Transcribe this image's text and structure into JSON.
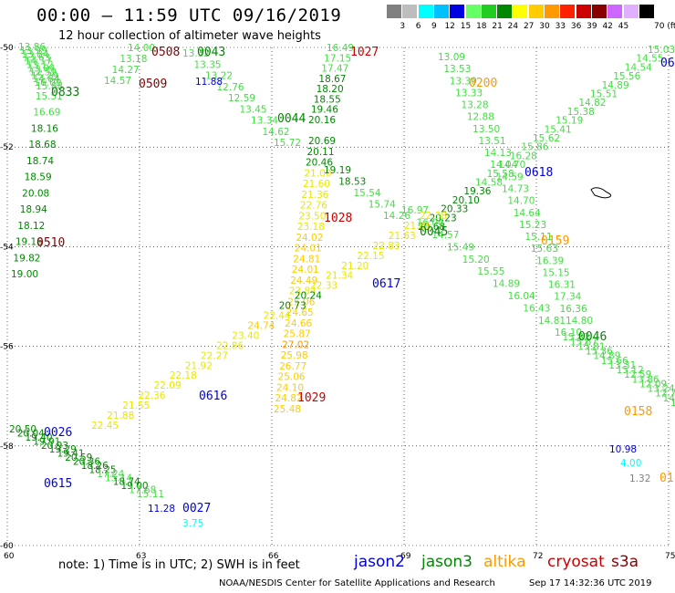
{
  "header": {
    "title": "00:00 – 11:59 UTC 09/16/2019",
    "subtitle": "12 hour collection of altimeter wave heights"
  },
  "legend": {
    "unit": "70 (ft)",
    "bins": [
      {
        "label": "",
        "color": "#808080"
      },
      {
        "label": "3",
        "color": "#bdbdbd"
      },
      {
        "label": "6",
        "color": "#00ffff"
      },
      {
        "label": "9",
        "color": "#00c0ff"
      },
      {
        "label": "12",
        "color": "#0000e0"
      },
      {
        "label": "15",
        "color": "#66ff66"
      },
      {
        "label": "18",
        "color": "#22cc22"
      },
      {
        "label": "21",
        "color": "#008800"
      },
      {
        "label": "24",
        "color": "#ffff00"
      },
      {
        "label": "27",
        "color": "#ffcc00"
      },
      {
        "label": "30",
        "color": "#ff9900"
      },
      {
        "label": "33",
        "color": "#ff2200"
      },
      {
        "label": "36",
        "color": "#cc0000"
      },
      {
        "label": "39",
        "color": "#880000"
      },
      {
        "label": "42",
        "color": "#cc66ff"
      },
      {
        "label": "45",
        "color": "#e0b0ff"
      },
      {
        "label": "",
        "color": "#000000"
      }
    ]
  },
  "chart_data": {
    "type": "scatter",
    "x_ticks": [
      "60",
      "63",
      "66",
      "69",
      "72",
      "75"
    ],
    "y_ticks": [
      "-50",
      "-52",
      "-54",
      "-56",
      "-58",
      "-60"
    ],
    "xlim": [
      60,
      75
    ],
    "ylim": [
      -60,
      -50
    ],
    "tracks": [
      {
        "sat": "jason3",
        "values": [
          "13.86",
          "13.99",
          "13.84",
          "13.63",
          "14.17",
          "13.12",
          "13.04",
          "12.59",
          "15.29",
          "14.84",
          "16.09",
          "15.88",
          "15.51",
          "16.69",
          "18.16",
          "18.68",
          "18.74",
          "18.59",
          "20.08",
          "18.94",
          "18.12",
          "19.16",
          "19.82",
          "19.00"
        ],
        "line": [
          [
            20,
            55
          ],
          [
            40,
            100
          ],
          [
            12,
            304
          ]
        ]
      },
      {
        "sat": "jason3",
        "values": [
          "14.00",
          "13.18",
          "14.27",
          "14.57"
        ],
        "line": [
          [
            140,
            56
          ],
          [
            114,
            92
          ]
        ]
      },
      {
        "sat": "jason3",
        "values": [
          "13.32",
          "13.35",
          "13.22",
          "12.76",
          "12.59",
          "13.45",
          "13.34",
          "14.62",
          "15.72"
        ],
        "line": [
          [
            200,
            62
          ],
          [
            300,
            160
          ]
        ]
      },
      {
        "sat": "jason3",
        "values": [
          "16.49",
          "17.15",
          "17.47",
          "18.67",
          "18.20",
          "18.55",
          "19.46",
          "20.16"
        ],
        "line": [
          [
            358,
            56
          ],
          [
            338,
            135
          ]
        ]
      },
      {
        "sat": "jason3",
        "values": [
          "13.09",
          "13.53",
          "13.39",
          "13.33",
          "13.28",
          "12.88",
          "13.50",
          "13.51",
          "14.13",
          "14.04",
          "14.59",
          "14.73",
          "14.70",
          "14.64",
          "15.23",
          "15.11",
          "15.63",
          "16.39",
          "15.15",
          "16.31",
          "17.34",
          "16.36",
          "14.80"
        ],
        "line": [
          [
            480,
            66
          ],
          [
            620,
            355
          ]
        ]
      },
      {
        "sat": "jason3",
        "values": [
          "15.03",
          "14.55",
          "14.54",
          "15.56",
          "14.89",
          "15.51",
          "14.82",
          "15.38",
          "15.19",
          "15.41",
          "15.62",
          "15.86",
          "16.28",
          "14.70",
          "15.58",
          "14.58",
          "19.36",
          "20.10",
          "20.33",
          "20.23",
          "20.68"
        ],
        "line": [
          [
            710,
            58
          ],
          [
            458,
            252
          ]
        ]
      },
      {
        "sat": "jason3",
        "values": [
          "16.97",
          "16.04",
          "14.57",
          "15.49",
          "15.20",
          "15.55",
          "14.89",
          "16.04",
          "16.43",
          "14.81"
        ],
        "line": [
          [
            440,
            234
          ],
          [
            590,
            355
          ]
        ]
      },
      {
        "sat": "jason3",
        "values": [
          "16.10",
          "15.82",
          "15.67",
          "15.81",
          "15.36",
          "14.89",
          "15.66",
          "13.31",
          "15.12",
          "12.59",
          "13.86",
          "12.09",
          "13.24",
          "12.74",
          "14.13",
          "13.3"
        ],
        "line": [
          [
            608,
            368
          ],
          [
            735,
            445
          ]
        ]
      },
      {
        "sat": "jason3",
        "values": [
          "20.50",
          "20.04",
          "19.40",
          "19.91",
          "20.93",
          "19.29",
          "19.41",
          "20.59",
          "20.36",
          "18.26",
          "18.25",
          "17.24",
          "15.14",
          "18.74",
          "19.00",
          "17.68",
          "15.11"
        ],
        "line": [
          [
            10,
            474
          ],
          [
            150,
            545
          ]
        ]
      },
      {
        "sat": "altika",
        "values": [
          "20.69",
          "20.11",
          "20.46",
          "21.00",
          "21.60",
          "21.36",
          "22.76",
          "23.50",
          "23.18",
          "24.02",
          "24.01",
          "24.81",
          "24.01",
          "24.49",
          "23.84",
          "25.06",
          "24.65",
          "24.66",
          "25.87",
          "27.02",
          "25.98",
          "26.77",
          "25.06",
          "24.10",
          "24.82",
          "25.48"
        ],
        "line": [
          [
            338,
            158
          ],
          [
            300,
            452
          ]
        ]
      },
      {
        "sat": "altika",
        "values": [
          "22.45",
          "21.88",
          "21.55",
          "22.36",
          "22.09",
          "22.18",
          "21.92",
          "22.27",
          "22.86",
          "23.40",
          "24.74",
          "22.44",
          "20.73",
          "20.24",
          "22.33",
          "21.34",
          "21.20",
          "22.15",
          "22.83",
          "21.63",
          "21.86",
          "22.38"
        ],
        "line": [
          [
            100,
            470
          ],
          [
            460,
            240
          ]
        ]
      },
      {
        "sat": "jason3",
        "values": [
          "19.19",
          "18.53",
          "15.54",
          "15.74",
          "14.26"
        ],
        "line": [
          [
            355,
            190
          ],
          [
            420,
            240
          ]
        ]
      },
      {
        "sat": "jason2",
        "values": [
          "11.88",
          "10.98",
          "11.28"
        ],
        "line": []
      },
      {
        "sat": "cryosat",
        "values": [
          "1.32"
        ],
        "line": []
      },
      {
        "sat": "s3a",
        "values": [
          "4.00",
          "3.75"
        ],
        "line": []
      }
    ]
  },
  "overpass_times": [
    {
      "label": "0508",
      "color": "#880000"
    },
    {
      "label": "0043",
      "color": "#008800"
    },
    {
      "label": "1027",
      "color": "#cc0000"
    },
    {
      "label": "0509",
      "color": "#880000"
    },
    {
      "label": "0833",
      "color": "#008800"
    },
    {
      "label": "0044",
      "color": "#008800"
    },
    {
      "label": "0200",
      "color": "#ff9900"
    },
    {
      "label": "06",
      "color": "#0000e0"
    },
    {
      "label": "0618",
      "color": "#0000e0"
    },
    {
      "label": "1028",
      "color": "#cc0000"
    },
    {
      "label": "0045",
      "color": "#008800"
    },
    {
      "label": "0159",
      "color": "#ff9900"
    },
    {
      "label": "0510",
      "color": "#880000"
    },
    {
      "label": "0617",
      "color": "#0000e0"
    },
    {
      "label": "0046",
      "color": "#008800"
    },
    {
      "label": "0616",
      "color": "#0000e0"
    },
    {
      "label": "1029",
      "color": "#cc0000"
    },
    {
      "label": "0158",
      "color": "#ff9900"
    },
    {
      "label": "0026",
      "color": "#0000e0"
    },
    {
      "label": "0615",
      "color": "#0000e0"
    },
    {
      "label": "0027",
      "color": "#0000e0"
    },
    {
      "label": "01",
      "color": "#ff9900"
    }
  ],
  "footer": {
    "note": "note:  1) Time is in UTC;  2) SWH is in feet",
    "satellites": [
      {
        "name": "jason2",
        "color": "#0000e0"
      },
      {
        "name": "jason3",
        "color": "#008800"
      },
      {
        "name": "altika",
        "color": "#ff9900"
      },
      {
        "name": "cryosat",
        "color": "#cc0000"
      },
      {
        "name": "s3a",
        "color": "#880000"
      }
    ],
    "credit": "NOAA/NESDIS Center for Satellite Applications and Research",
    "timestamp": "Sep 17 14:32:36 UTC 2019"
  }
}
